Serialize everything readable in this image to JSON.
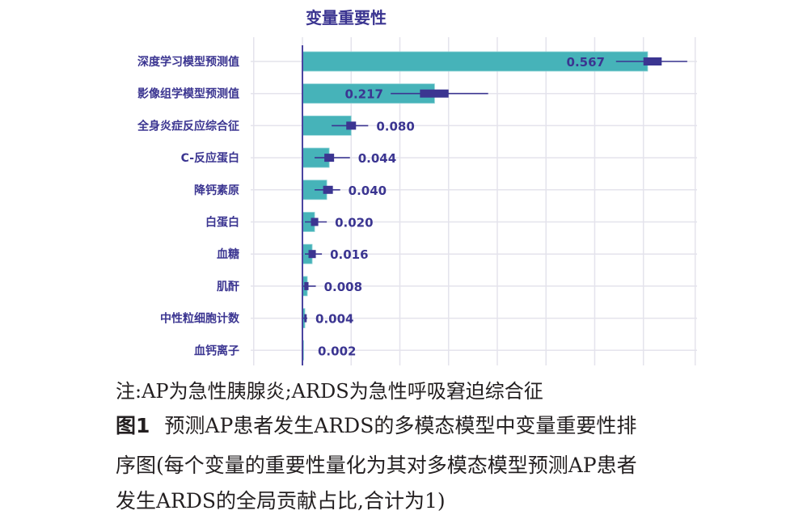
{
  "chart_data": {
    "type": "bar",
    "orientation": "horizontal",
    "title": "变量重要性",
    "xlabel": "",
    "ylabel": "",
    "categories": [
      "深度学习模型预测值",
      "影像组学模型预测值",
      "全身炎症反应综合征",
      "C-反应蛋白",
      "降钙素原",
      "白蛋白",
      "血糖",
      "肌酐",
      "中性粒细胞计数",
      "血钙离子"
    ],
    "values": [
      0.567,
      0.217,
      0.08,
      0.044,
      0.04,
      0.02,
      0.016,
      0.008,
      0.004,
      0.002
    ],
    "value_labels": [
      "0.567",
      "0.217",
      "0.080",
      "0.044",
      "0.040",
      "0.020",
      "0.016",
      "0.008",
      "0.004",
      "0.002"
    ],
    "error_bars": [
      {
        "center": 0.585,
        "box": [
          0.56,
          0.59
        ],
        "whisker": [
          0.515,
          0.632
        ]
      },
      {
        "center": 0.235,
        "box": [
          0.193,
          0.24
        ],
        "whisker": [
          0.145,
          0.305
        ]
      },
      {
        "center": 0.08,
        "box": [
          0.072,
          0.088
        ],
        "whisker": [
          0.048,
          0.108
        ]
      },
      {
        "center": 0.044,
        "box": [
          0.036,
          0.052
        ],
        "whisker": [
          0.02,
          0.078
        ]
      },
      {
        "center": 0.044,
        "box": [
          0.034,
          0.05
        ],
        "whisker": [
          0.02,
          0.062
        ]
      },
      {
        "center": 0.02,
        "box": [
          0.014,
          0.026
        ],
        "whisker": [
          0.004,
          0.04
        ]
      },
      {
        "center": 0.016,
        "box": [
          0.01,
          0.022
        ],
        "whisker": [
          0.004,
          0.032
        ]
      },
      {
        "center": 0.006,
        "box": [
          0.003,
          0.01
        ],
        "whisker": [
          0.001,
          0.022
        ]
      },
      {
        "center": 0.004,
        "box": [
          0.003,
          0.005
        ],
        "whisker": [
          0.001,
          0.008
        ]
      },
      {
        "center": 0.002,
        "box": [
          0.002,
          0.002
        ],
        "whisker": [
          0.002,
          0.002
        ]
      }
    ],
    "xlim": [
      -0.08,
      0.64
    ],
    "grid": true,
    "legend": "none",
    "colors": {
      "bar": "#46b3b9",
      "bar_edge": "#8fd3d6",
      "error": "#3b3591",
      "label": "#3b3591",
      "axis": "#4b44a0",
      "grid": "#e4e3ec"
    }
  },
  "caption": {
    "note": "注:AP为急性胰腺炎;ARDS为急性呼吸窘迫综合征",
    "figure_number": "图1",
    "figure_title_lines": [
      "预测AP患者发生ARDS的多模态模型中变量重要性排",
      "序图(每个变量的重要性量化为其对多模态模型预测AP患者",
      "发生ARDS的全局贡献占比,合计为1)"
    ]
  }
}
